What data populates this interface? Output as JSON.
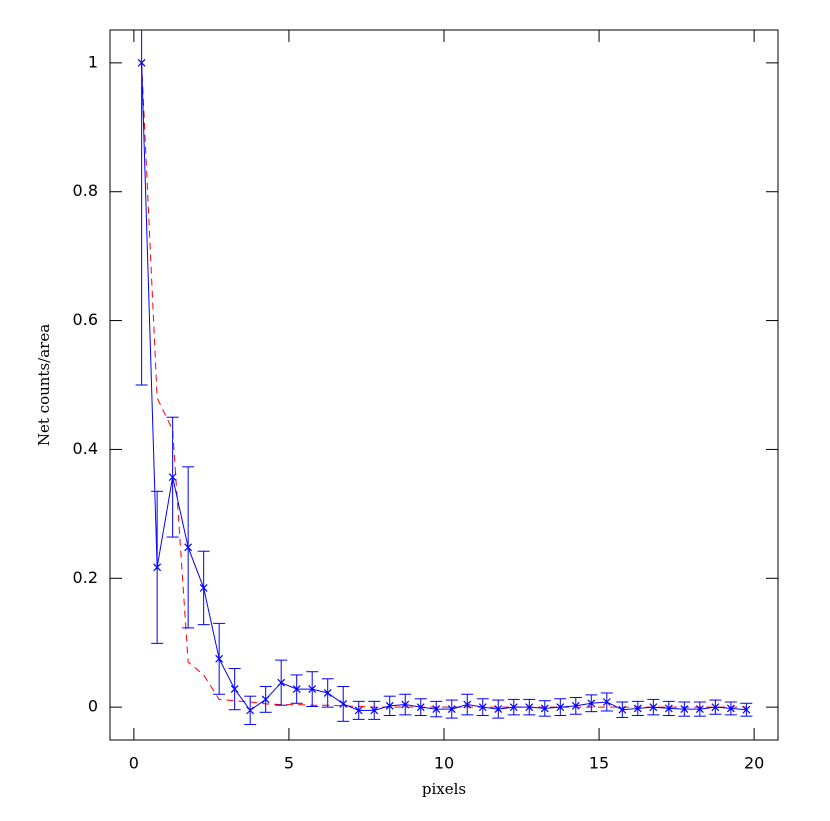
{
  "chart_data": {
    "type": "errorbar",
    "x_label": "pixels",
    "y_label": "Net counts/area",
    "xlim": [
      -0.77,
      20.77
    ],
    "ylim": [
      -0.051,
      1.051
    ],
    "xticks": [
      0,
      5,
      10,
      15,
      20
    ],
    "yticks": [
      0,
      0.2,
      0.4,
      0.6,
      0.8,
      1
    ],
    "x": [
      0.25,
      0.75,
      1.25,
      1.75,
      2.25,
      2.75,
      3.25,
      3.75,
      4.25,
      4.75,
      5.25,
      5.75,
      6.25,
      6.75,
      7.25,
      7.75,
      8.25,
      8.75,
      9.25,
      9.75,
      10.25,
      10.75,
      11.25,
      11.75,
      12.25,
      12.75,
      13.25,
      13.75,
      14.25,
      14.75,
      15.25,
      15.75,
      16.25,
      16.75,
      17.25,
      17.75,
      18.25,
      18.75,
      19.25,
      19.75
    ],
    "series": [
      {
        "color": "#0000ff",
        "style": "solid",
        "marker": "x",
        "values": [
          1.0,
          0.217,
          0.357,
          0.248,
          0.185,
          0.075,
          0.028,
          -0.005,
          0.012,
          0.038,
          0.028,
          0.028,
          0.022,
          0.005,
          -0.005,
          -0.005,
          0.002,
          0.004,
          0,
          -0.003,
          -0.003,
          0.004,
          0,
          -0.003,
          0,
          0,
          -0.002,
          0,
          0.002,
          0.006,
          0.008,
          -0.004,
          -0.002,
          0,
          -0.002,
          -0.003,
          -0.003,
          0,
          -0.002,
          -0.004
        ],
        "errors": [
          0.5,
          0.118,
          0.093,
          0.125,
          0.057,
          0.055,
          0.032,
          0.022,
          0.02,
          0.035,
          0.022,
          0.027,
          0.022,
          0.027,
          0.014,
          0.014,
          0.015,
          0.016,
          0.013,
          0.012,
          0.014,
          0.016,
          0.013,
          0.014,
          0.012,
          0.012,
          0.012,
          0.013,
          0.013,
          0.013,
          0.014,
          0.012,
          0.011,
          0.012,
          0.011,
          0.011,
          0.011,
          0.011,
          0.01,
          0.01
        ]
      },
      {
        "color": "#ff0000",
        "style": "dashed",
        "values": [
          1.0,
          0.48,
          0.43,
          0.07,
          0.05,
          0.012,
          0.01,
          0.008,
          0.005,
          0.004,
          0.004,
          0.003,
          0.003,
          0.002,
          0.001,
          0,
          0,
          0,
          0,
          0,
          0,
          0,
          0,
          0,
          0,
          0,
          0,
          0,
          0,
          0,
          0,
          0,
          0,
          0,
          0,
          0,
          0,
          0,
          0,
          0
        ]
      }
    ]
  }
}
